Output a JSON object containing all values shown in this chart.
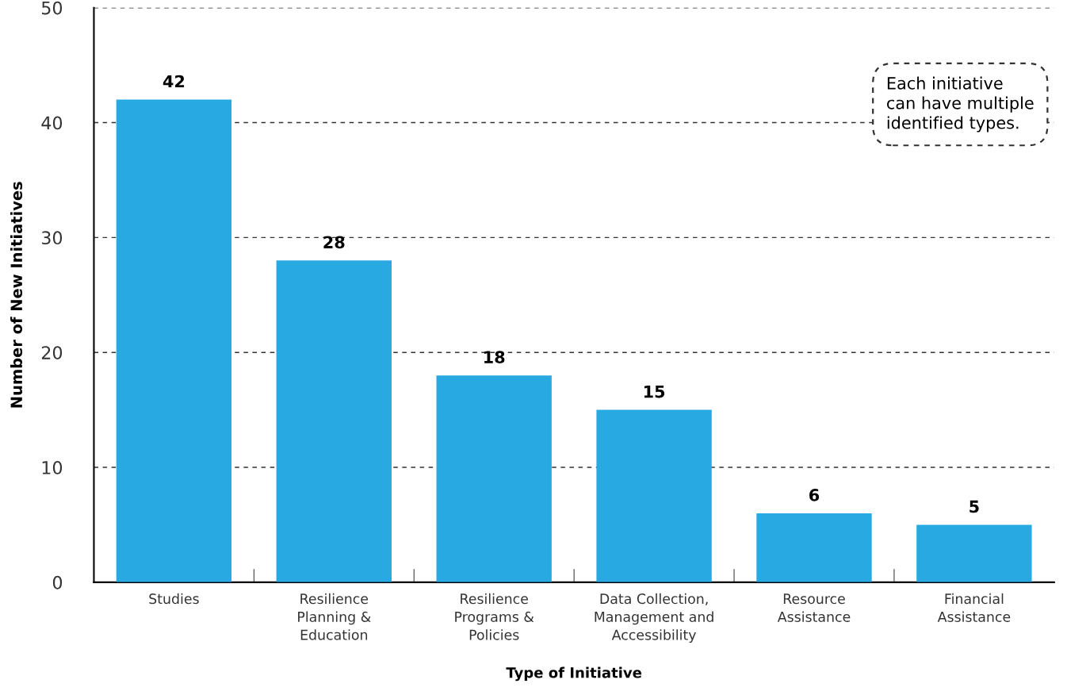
{
  "chart_data": {
    "type": "bar",
    "xlabel": "Type of Initiative",
    "ylabel": "Number of New Initiatives",
    "categories": [
      "Studies",
      "Resilience\nPlanning &\nEducation",
      "Resilience\nPrograms &\nPolicies",
      "Data Collection,\nManagement and\nAccessibility",
      "Resource\nAssistance",
      "Financial\nAssistance"
    ],
    "values": [
      42,
      28,
      18,
      15,
      6,
      5
    ],
    "color": "#29a9e1",
    "ylim": [
      0,
      50
    ],
    "yticks": [
      0,
      10,
      20,
      30,
      40,
      50
    ],
    "grid": "y",
    "data_labels": true,
    "annotations": [
      "Each initiative\ncan have multiple\nidentified types."
    ]
  }
}
